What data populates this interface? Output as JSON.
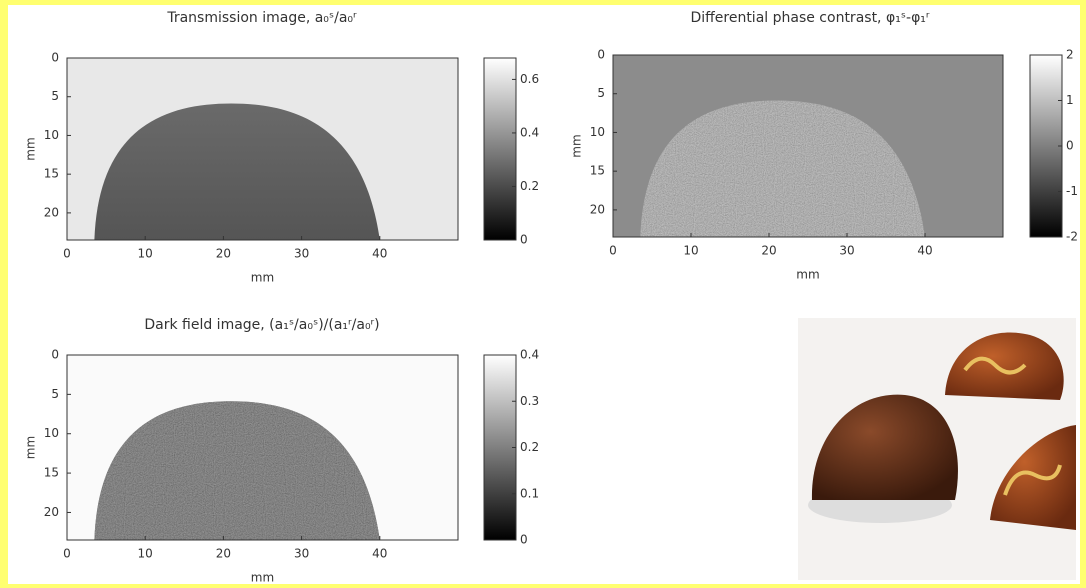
{
  "chart_data": [
    {
      "type": "image",
      "title": "Transmission image, a₀ˢ/a₀ʳ",
      "xlabel": "mm",
      "ylabel": "mm",
      "xlim": [
        0,
        50
      ],
      "xticks": [
        0,
        10,
        20,
        30,
        40
      ],
      "ylim": [
        0,
        23.5
      ],
      "yticks": [
        0,
        5,
        10,
        15,
        20
      ],
      "y_reversed": true,
      "clim": [
        0,
        0.68
      ],
      "cticks": [
        0,
        0.2,
        0.4,
        0.6
      ]
    },
    {
      "type": "image",
      "title": "Differential phase contrast, φ₁ˢ-φ₁ʳ",
      "xlabel": "mm",
      "ylabel": "mm",
      "xlim": [
        0,
        50
      ],
      "xticks": [
        0,
        10,
        20,
        30,
        40
      ],
      "ylim": [
        0,
        23.5
      ],
      "yticks": [
        0,
        5,
        10,
        15,
        20
      ],
      "y_reversed": true,
      "clim": [
        -2,
        2
      ],
      "cticks": [
        -2,
        -1,
        0,
        1,
        2
      ]
    },
    {
      "type": "image",
      "title": "Dark field image, (a₁ˢ/a₀ˢ)/(a₁ʳ/a₀ʳ)",
      "xlabel": "mm",
      "ylabel": "mm",
      "xlim": [
        0,
        50
      ],
      "xticks": [
        0,
        10,
        20,
        30,
        40
      ],
      "ylim": [
        0,
        23.5
      ],
      "yticks": [
        0,
        5,
        10,
        15,
        20
      ],
      "y_reversed": true,
      "clim": [
        0,
        0.4
      ],
      "cticks": [
        0,
        0.1,
        0.2,
        0.3,
        0.4
      ]
    }
  ]
}
